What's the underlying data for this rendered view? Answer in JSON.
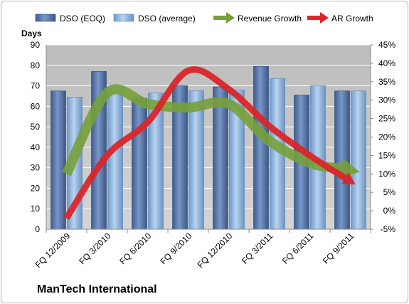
{
  "chart_data": {
    "type": "bar",
    "categories": [
      "FQ 12/2009",
      "FQ 3/2010",
      "FQ 6/2010",
      "FQ 9/2010",
      "FQ 12/2010",
      "FQ 3/2011",
      "FQ 6/2011",
      "FQ 9/2011"
    ],
    "series": [
      {
        "name": "DSO (EOQ)",
        "type": "bar",
        "axis": "left",
        "color": "#5a7bb0",
        "values": [
          67.5,
          77,
          64,
          70,
          69.5,
          79.5,
          65.5,
          67.5
        ]
      },
      {
        "name": "DSO (average)",
        "type": "bar",
        "axis": "left",
        "color": "#8eb4e3",
        "values": [
          64.5,
          69,
          66.5,
          67.5,
          68,
          73.5,
          70,
          67.5
        ]
      },
      {
        "name": "Revenue Growth",
        "type": "line",
        "axis": "right",
        "color": "#77a03a",
        "values": [
          10,
          32,
          29,
          28,
          29,
          19,
          13,
          11
        ]
      },
      {
        "name": "AR Growth",
        "type": "line",
        "axis": "right",
        "color": "#d9262a",
        "values": [
          -2,
          15,
          24,
          38,
          33,
          23,
          15,
          8
        ]
      }
    ],
    "ylabel": "Days",
    "ylim": [
      0,
      90
    ],
    "yticks": [
      "0",
      "10",
      "20",
      "30",
      "40",
      "50",
      "60",
      "70",
      "80",
      "90"
    ],
    "y2lim": [
      -5,
      45
    ],
    "y2ticks": [
      "-5%",
      "0%",
      "5%",
      "10%",
      "15%",
      "20%",
      "25%",
      "30%",
      "35%",
      "40%",
      "45%"
    ],
    "grid": true,
    "legend": "top",
    "plot_background": "#c0c0c0"
  },
  "footer": {
    "company": "ManTech International"
  }
}
